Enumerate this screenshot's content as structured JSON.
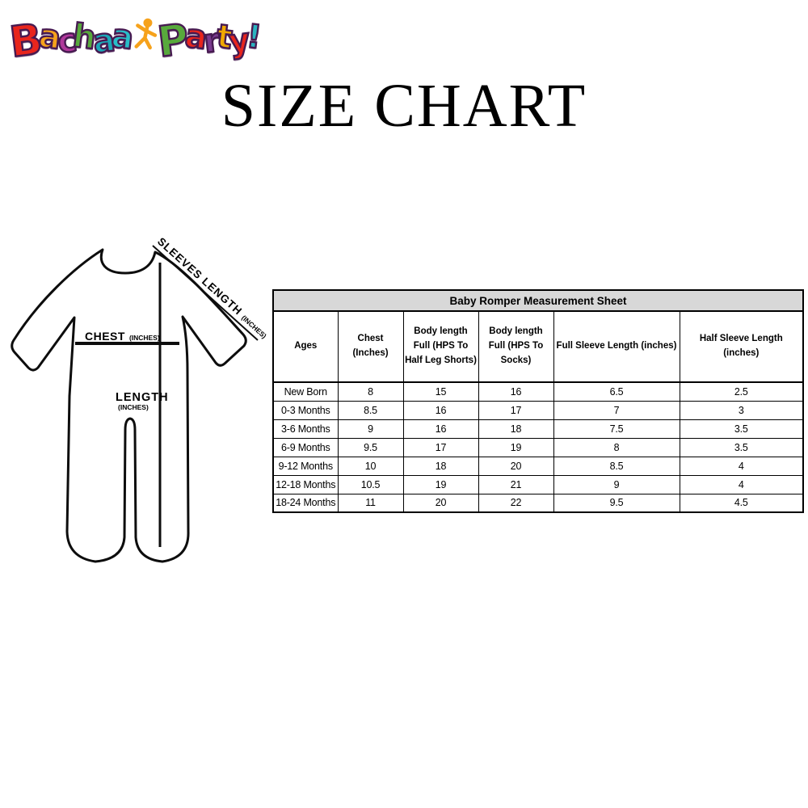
{
  "title": "SIZE CHART",
  "logo": {
    "brand": "Bachaa Party!",
    "outline_color": "#471a51",
    "mascot_icon": "dancing-kid-icon",
    "mascot_color": "#f6a21c",
    "word1": [
      {
        "ch": "B",
        "color": "#e8251d"
      },
      {
        "ch": "a",
        "color": "#f6a21c"
      },
      {
        "ch": "c",
        "color": "#b0379b"
      },
      {
        "ch": "h",
        "color": "#58a93c"
      },
      {
        "ch": "a",
        "color": "#1ba8b8"
      },
      {
        "ch": "a",
        "color": "#28bdc8"
      }
    ],
    "word2": [
      {
        "ch": "P",
        "color": "#58a93c"
      },
      {
        "ch": "a",
        "color": "#e8251d"
      },
      {
        "ch": "r",
        "color": "#7a3a8f"
      },
      {
        "ch": "t",
        "color": "#f0a800"
      },
      {
        "ch": "y",
        "color": "#e8251d"
      },
      {
        "ch": "!",
        "color": "#2bb3c0"
      }
    ]
  },
  "diagram": {
    "sleeve_label": "SLEEVES LENGTH",
    "sleeve_unit": "(INCHES)",
    "chest_label": "CHEST",
    "chest_unit": "(INCHES)",
    "length_label": "LENGTH",
    "length_unit": "(INCHES)",
    "line_color": "#000000"
  },
  "table_style": {
    "title_bg": "#d8d8d8",
    "border_color": "#000000",
    "text_color": "#000000"
  },
  "chart_data": {
    "type": "table",
    "title": "Baby Romper Measurement Sheet",
    "columns": [
      "Ages",
      "Chest (Inches)",
      "Body length Full (HPS To Half Leg Shorts)",
      "Body length Full (HPS To Socks)",
      "Full Sleeve Length (inches)",
      "Half Sleeve Length (inches)"
    ],
    "rows": [
      [
        "New Born",
        "8",
        "15",
        "16",
        "6.5",
        "2.5"
      ],
      [
        "0-3 Months",
        "8.5",
        "16",
        "17",
        "7",
        "3"
      ],
      [
        "3-6 Months",
        "9",
        "16",
        "18",
        "7.5",
        "3.5"
      ],
      [
        "6-9 Months",
        "9.5",
        "17",
        "19",
        "8",
        "3.5"
      ],
      [
        "9-12 Months",
        "10",
        "18",
        "20",
        "8.5",
        "4"
      ],
      [
        "12-18 Months",
        "10.5",
        "19",
        "21",
        "9",
        "4"
      ],
      [
        "18-24 Months",
        "11",
        "20",
        "22",
        "9.5",
        "4.5"
      ]
    ]
  }
}
